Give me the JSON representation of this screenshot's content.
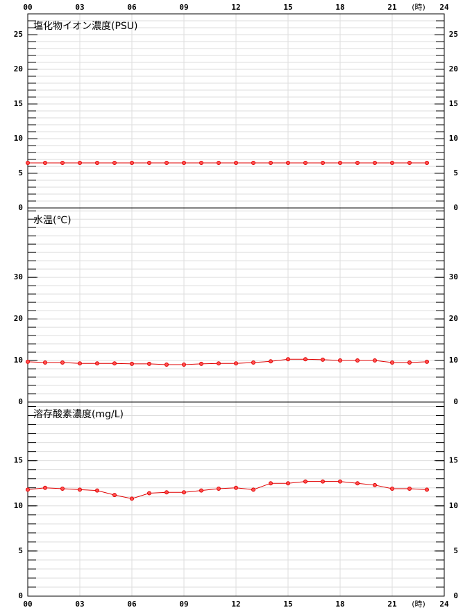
{
  "chart_data": [
    {
      "type": "line",
      "title": "塩化物イオン濃度(PSU)",
      "x_unit_label": "(時)",
      "xaxis_position": "top",
      "x": [
        0,
        1,
        2,
        3,
        4,
        5,
        6,
        7,
        8,
        9,
        10,
        11,
        12,
        13,
        14,
        15,
        16,
        17,
        18,
        19,
        20,
        21,
        22,
        23
      ],
      "xlim": [
        0,
        24
      ],
      "xticks": [
        {
          "value": 0,
          "label": "00"
        },
        {
          "value": 3,
          "label": "03"
        },
        {
          "value": 6,
          "label": "06"
        },
        {
          "value": 9,
          "label": "09"
        },
        {
          "value": 12,
          "label": "12"
        },
        {
          "value": 15,
          "label": "15"
        },
        {
          "value": 18,
          "label": "18"
        },
        {
          "value": 21,
          "label": "21"
        },
        {
          "value": 24,
          "label": "24"
        }
      ],
      "ylim": [
        0,
        28
      ],
      "yticks": [
        0,
        5,
        10,
        15,
        20,
        25
      ],
      "yminor_step": 1,
      "grid": true,
      "series": [
        {
          "color": "#e00000",
          "values": [
            6.5,
            6.5,
            6.5,
            6.5,
            6.5,
            6.5,
            6.5,
            6.5,
            6.5,
            6.5,
            6.5,
            6.5,
            6.5,
            6.5,
            6.5,
            6.5,
            6.5,
            6.5,
            6.5,
            6.5,
            6.5,
            6.5,
            6.5,
            6.5
          ]
        }
      ]
    },
    {
      "type": "line",
      "title": "水温(℃)",
      "x": [
        0,
        1,
        2,
        3,
        4,
        5,
        6,
        7,
        8,
        9,
        10,
        11,
        12,
        13,
        14,
        15,
        16,
        17,
        18,
        19,
        20,
        21,
        22,
        23
      ],
      "xlim": [
        0,
        24
      ],
      "ylim": [
        0,
        46.7
      ],
      "yticks": [
        0,
        10,
        20,
        30
      ],
      "yminor_step": 2,
      "grid": true,
      "series": [
        {
          "color": "#e00000",
          "values": [
            9.7,
            9.5,
            9.5,
            9.3,
            9.3,
            9.3,
            9.2,
            9.2,
            9.0,
            9.0,
            9.2,
            9.3,
            9.3,
            9.5,
            9.8,
            10.3,
            10.3,
            10.2,
            10.0,
            10.0,
            10.0,
            9.5,
            9.5,
            9.7
          ]
        }
      ]
    },
    {
      "type": "line",
      "title": "溶存酸素濃度(mg/L)",
      "x_unit_label": "(時)",
      "xaxis_position": "bottom",
      "x": [
        0,
        1,
        2,
        3,
        4,
        5,
        6,
        7,
        8,
        9,
        10,
        11,
        12,
        13,
        14,
        15,
        16,
        17,
        18,
        19,
        20,
        21,
        22,
        23
      ],
      "xlim": [
        0,
        24
      ],
      "xticks": [
        {
          "value": 0,
          "label": "00"
        },
        {
          "value": 3,
          "label": "03"
        },
        {
          "value": 6,
          "label": "06"
        },
        {
          "value": 9,
          "label": "09"
        },
        {
          "value": 12,
          "label": "12"
        },
        {
          "value": 15,
          "label": "15"
        },
        {
          "value": 18,
          "label": "18"
        },
        {
          "value": 21,
          "label": "21"
        },
        {
          "value": 24,
          "label": "24"
        }
      ],
      "ylim": [
        0,
        21.5
      ],
      "yticks": [
        0,
        5,
        10,
        15
      ],
      "yminor_step": 1,
      "grid": true,
      "series": [
        {
          "color": "#e00000",
          "values": [
            11.8,
            12.0,
            11.9,
            11.8,
            11.7,
            11.2,
            10.8,
            11.4,
            11.5,
            11.5,
            11.7,
            11.9,
            12.0,
            11.8,
            12.5,
            12.5,
            12.7,
            12.7,
            12.7,
            12.5,
            12.3,
            11.9,
            11.9,
            11.8
          ]
        }
      ]
    }
  ]
}
